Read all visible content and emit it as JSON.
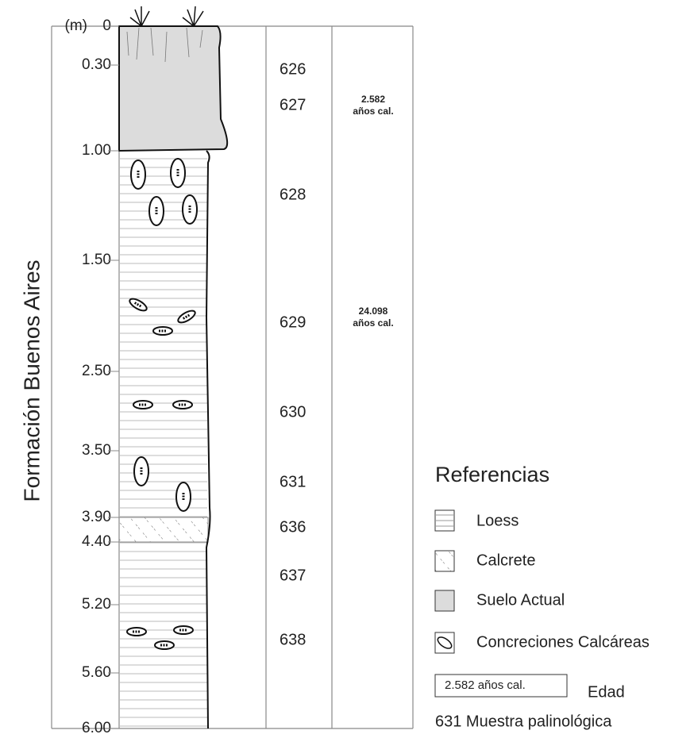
{
  "title": "Formación  Buenos  Aires",
  "depth_unit": "(m)",
  "depths": [
    "0",
    "0.30",
    "1.00",
    "1.50",
    "2.50",
    "3.50",
    "3.90",
    "4.40",
    "5.20",
    "5.60",
    "6.00"
  ],
  "samples": [
    "626",
    "627",
    "628",
    "629",
    "630",
    "631",
    "636",
    "637",
    "638"
  ],
  "ages": [
    {
      "value": "2.582",
      "unit": "años cal."
    },
    {
      "value": "24.098",
      "unit": "años cal."
    }
  ],
  "legend": {
    "title": "Referencias",
    "items": [
      "Loess",
      "Calcrete",
      "Suelo Actual",
      "Concreciones Calcáreas"
    ],
    "age_example": "2.582  años cal.",
    "age_label": "Edad",
    "sample_example": "631 Muestra palinológica"
  }
}
